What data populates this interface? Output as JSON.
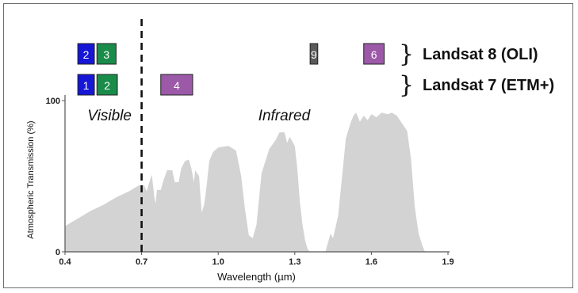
{
  "chart_data": {
    "type": "area",
    "title": "",
    "xlabel": "Wavelength (µm)",
    "ylabel": "Atmospheric Transmission (%)",
    "xlim": [
      0.4,
      1.9
    ],
    "ylim": [
      0,
      100
    ],
    "xticks": [
      0.4,
      0.7,
      1.0,
      1.3,
      1.6,
      1.9
    ],
    "xtick_labels": [
      "0.4",
      "0.7",
      "1.0",
      "1.3",
      "1.6",
      "1.9"
    ],
    "yticks": [
      0,
      100
    ],
    "ytick_labels": [
      "0",
      "100"
    ],
    "grid": false,
    "divider_x": 0.7,
    "regions": [
      {
        "label": "Visible",
        "x": 0.55
      },
      {
        "label": "Infrared",
        "x": 1.25
      }
    ],
    "series": [
      {
        "color": "#d3d3d3",
        "points": [
          [
            0.4,
            17
          ],
          [
            0.45,
            22
          ],
          [
            0.5,
            27
          ],
          [
            0.55,
            31
          ],
          [
            0.6,
            36
          ],
          [
            0.65,
            40
          ],
          [
            0.69,
            44
          ],
          [
            0.71,
            44
          ],
          [
            0.72,
            40
          ],
          [
            0.73,
            46
          ],
          [
            0.74,
            51
          ],
          [
            0.75,
            36
          ],
          [
            0.755,
            32
          ],
          [
            0.76,
            41
          ],
          [
            0.775,
            41
          ],
          [
            0.785,
            47
          ],
          [
            0.8,
            54
          ],
          [
            0.82,
            54
          ],
          [
            0.83,
            46
          ],
          [
            0.845,
            46
          ],
          [
            0.855,
            55
          ],
          [
            0.87,
            60
          ],
          [
            0.885,
            61
          ],
          [
            0.895,
            55
          ],
          [
            0.905,
            46
          ],
          [
            0.91,
            54
          ],
          [
            0.925,
            50
          ],
          [
            0.93,
            38
          ],
          [
            0.935,
            26
          ],
          [
            0.945,
            31
          ],
          [
            0.955,
            44
          ],
          [
            0.965,
            60
          ],
          [
            0.98,
            66
          ],
          [
            1.0,
            69
          ],
          [
            1.04,
            70
          ],
          [
            1.07,
            67
          ],
          [
            1.09,
            50
          ],
          [
            1.105,
            28
          ],
          [
            1.12,
            11
          ],
          [
            1.135,
            9
          ],
          [
            1.15,
            18
          ],
          [
            1.17,
            52
          ],
          [
            1.2,
            68
          ],
          [
            1.225,
            74
          ],
          [
            1.24,
            79
          ],
          [
            1.26,
            79
          ],
          [
            1.27,
            72
          ],
          [
            1.28,
            76
          ],
          [
            1.3,
            70
          ],
          [
            1.31,
            55
          ],
          [
            1.32,
            33
          ],
          [
            1.33,
            18
          ],
          [
            1.34,
            8
          ],
          [
            1.35,
            2
          ],
          [
            1.36,
            0
          ],
          [
            1.42,
            0
          ],
          [
            1.425,
            3
          ],
          [
            1.44,
            12
          ],
          [
            1.45,
            9
          ],
          [
            1.47,
            24
          ],
          [
            1.49,
            58
          ],
          [
            1.5,
            75
          ],
          [
            1.52,
            86
          ],
          [
            1.53,
            90
          ],
          [
            1.54,
            92
          ],
          [
            1.555,
            86
          ],
          [
            1.57,
            90
          ],
          [
            1.585,
            87
          ],
          [
            1.6,
            91
          ],
          [
            1.62,
            89
          ],
          [
            1.64,
            92
          ],
          [
            1.665,
            91
          ],
          [
            1.68,
            92
          ],
          [
            1.7,
            90
          ],
          [
            1.72,
            85
          ],
          [
            1.74,
            80
          ],
          [
            1.755,
            62
          ],
          [
            1.77,
            30
          ],
          [
            1.785,
            12
          ],
          [
            1.8,
            4
          ],
          [
            1.81,
            0
          ]
        ]
      }
    ],
    "bands": [
      {
        "label": "2",
        "row": "Landsat 8 (OLI)",
        "x_start": 0.45,
        "x_end": 0.515,
        "color": "#1616d6"
      },
      {
        "label": "3",
        "row": "Landsat 8 (OLI)",
        "x_start": 0.525,
        "x_end": 0.6,
        "color": "#1a8c4a"
      },
      {
        "label": "9",
        "row": "Landsat 8 (OLI)",
        "x_start": 1.36,
        "x_end": 1.39,
        "color": "#5a5a5a"
      },
      {
        "label": "6",
        "row": "Landsat 8 (OLI)",
        "x_start": 1.57,
        "x_end": 1.65,
        "color": "#9b59a8"
      },
      {
        "label": "1",
        "row": "Landsat 7 (ETM+)",
        "x_start": 0.45,
        "x_end": 0.515,
        "color": "#1616d6"
      },
      {
        "label": "2",
        "row": "Landsat 7 (ETM+)",
        "x_start": 0.525,
        "x_end": 0.605,
        "color": "#1a8c4a"
      },
      {
        "label": "4",
        "row": "Landsat 7 (ETM+)",
        "x_start": 0.775,
        "x_end": 0.9,
        "color": "#9b59a8"
      }
    ],
    "legend": [
      {
        "label": "Landsat 8 (OLI)",
        "placement": "top-right"
      },
      {
        "label": "Landsat 7 (ETM+)",
        "placement": "top-right"
      }
    ]
  }
}
